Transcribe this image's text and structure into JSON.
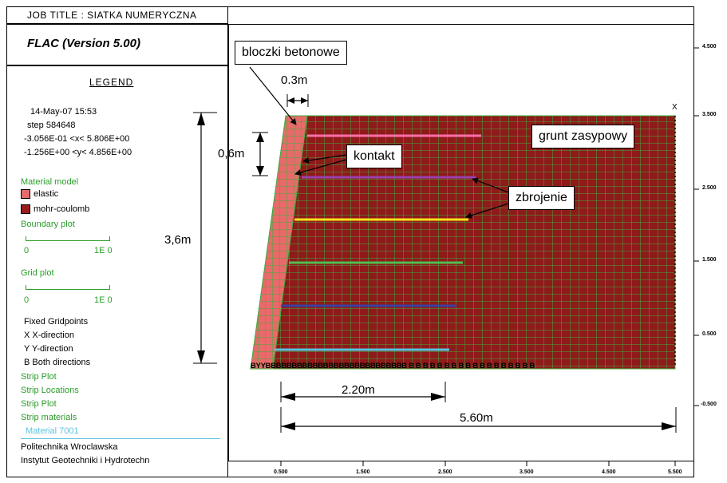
{
  "job_title": "JOB TITLE : SIATKA NUMERYCZNA",
  "program": "FLAC (Version 5.00)",
  "legend": {
    "heading": "LEGEND",
    "datetime": "14-May-07  15:53",
    "step": " step   584648",
    "xrange": "-3.056E-01 <x<  5.806E+00",
    "yrange": "-1.256E+00 <y<  4.856E+00",
    "material_model": "Material model",
    "materials": [
      {
        "name": "elastic",
        "color": "#e86a6a"
      },
      {
        "name": "mohr-coulomb",
        "color": "#9b1c1c"
      }
    ],
    "boundary_plot": "Boundary plot",
    "boundary_scale_min": "0",
    "boundary_scale_max": "1E 0",
    "grid_plot": "Grid plot",
    "grid_scale_min": "0",
    "grid_scale_max": "1E 0",
    "fixed_gridpoints": "Fixed Gridpoints",
    "fixed_x": " X  X-direction",
    "fixed_y": " Y  Y-direction",
    "fixed_b": " B  Both directions",
    "strip_plot_1": "Strip Plot",
    "strip_locations": "Strip Locations",
    "strip_plot_2": "Strip Plot",
    "strip_materials": "Strip materials",
    "material_7001": "Material 7001",
    "institution_1": "Politechnika Wroclawska",
    "institution_2": "Instytut Geotechniki i Hydrotechn"
  },
  "annotations": {
    "dim_height": "3,6m",
    "dim_block_height": "0,6m",
    "dim_block_width": "0.3m",
    "dim_short": "2.20m",
    "dim_long": "5.60m",
    "label_blocks": "bloczki betonowe",
    "label_contact": "kontakt",
    "label_reinforcement": "zbrojenie",
    "label_backfill": "grunt zasypowy"
  },
  "axes": {
    "y_ticks": [
      "4.500",
      "3.500",
      "2.500",
      "1.500",
      "0.500",
      "-0.500"
    ],
    "x_ticks": [
      "0.500",
      "1.500",
      "2.500",
      "3.500",
      "4.500",
      "5.500"
    ],
    "bottom_marks": "BYYBBBBBBBBBBBBBBBBBBBBBBBBBBB B B B B B B B B B B B B B B B B B B",
    "right_mark": "X"
  },
  "colors": {
    "soil": "#8e1a1a",
    "block": "#e86a6a",
    "grid": "#3fae3f",
    "strip_pink": "#ff6fa8",
    "strip_purple": "#9a3fb0",
    "strip_yellow": "#ffe11a",
    "strip_green": "#4fbf4f",
    "strip_navy": "#3a3fa0",
    "strip_cyan": "#58c3e0"
  }
}
